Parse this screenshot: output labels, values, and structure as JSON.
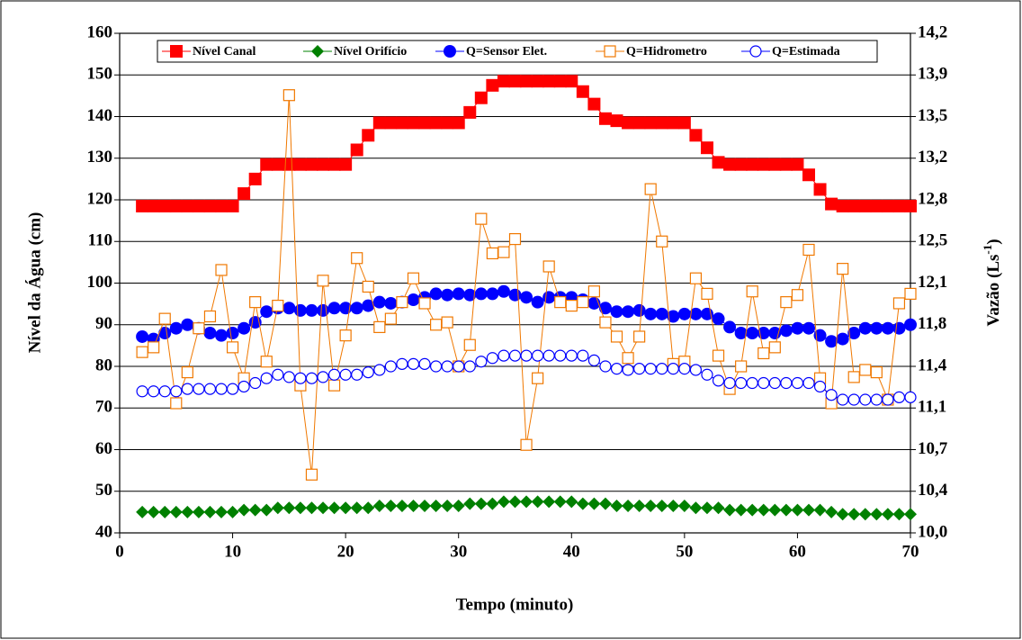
{
  "chart_data": {
    "type": "line",
    "xlabel": "Tempo (minuto)",
    "ylabel": "Nível da Água (cm)",
    "y2label": [
      "Vazão (Ls",
      "-1",
      ")"
    ],
    "xlim": [
      0,
      70
    ],
    "xticks": [
      0,
      10,
      20,
      30,
      40,
      50,
      60,
      70
    ],
    "ylim": [
      40,
      160
    ],
    "yticks": [
      40,
      50,
      60,
      70,
      80,
      90,
      100,
      110,
      120,
      130,
      140,
      150,
      160
    ],
    "y2lim": [
      10.0,
      14.2
    ],
    "y2ticks": [
      {
        "value": 10.0,
        "label": "10,0"
      },
      {
        "value": 10.35,
        "label": "10,4"
      },
      {
        "value": 10.7,
        "label": "10,7"
      },
      {
        "value": 11.05,
        "label": "11,1"
      },
      {
        "value": 11.4,
        "label": "11,4"
      },
      {
        "value": 11.75,
        "label": "11,8"
      },
      {
        "value": 12.1,
        "label": "12,1"
      },
      {
        "value": 12.45,
        "label": "12,5"
      },
      {
        "value": 12.8,
        "label": "12,8"
      },
      {
        "value": 13.15,
        "label": "13,2"
      },
      {
        "value": 13.5,
        "label": "13,5"
      },
      {
        "value": 13.85,
        "label": "13,9"
      },
      {
        "value": 14.2,
        "label": "14,2"
      }
    ],
    "grid": true,
    "legend": "top",
    "x": [
      2,
      3,
      4,
      5,
      6,
      7,
      8,
      9,
      10,
      11,
      12,
      13,
      14,
      15,
      16,
      17,
      18,
      19,
      20,
      21,
      22,
      23,
      24,
      25,
      26,
      27,
      28,
      29,
      30,
      31,
      32,
      33,
      34,
      35,
      36,
      37,
      38,
      39,
      40,
      41,
      42,
      43,
      44,
      45,
      46,
      47,
      48,
      49,
      50,
      51,
      52,
      53,
      54,
      55,
      56,
      57,
      58,
      59,
      60,
      61,
      62,
      63,
      64,
      65,
      66,
      67,
      68,
      69,
      70
    ],
    "series": [
      {
        "name": "Nível Canal",
        "color": "#ff0000",
        "marker": "square",
        "axis": "y",
        "values": [
          118.5,
          118.5,
          118.5,
          118.5,
          118.5,
          118.5,
          118.5,
          118.5,
          118.5,
          121.5,
          125,
          128.5,
          128.5,
          128.5,
          128.5,
          128.5,
          128.5,
          128.5,
          128.5,
          132,
          135.5,
          138.5,
          138.5,
          138.5,
          138.5,
          138.5,
          138.5,
          138.5,
          138.5,
          141,
          144.5,
          147.5,
          148.5,
          148.5,
          148.5,
          148.5,
          148.5,
          148.5,
          148.5,
          146,
          143,
          139.5,
          139,
          138.5,
          138.5,
          138.5,
          138.5,
          138.5,
          138.5,
          135.5,
          132.5,
          129,
          128.5,
          128.5,
          128.5,
          128.5,
          128.5,
          128.5,
          128.5,
          126,
          122.5,
          119,
          118.5,
          118.5,
          118.5,
          118.5,
          118.5,
          118.5,
          118.5
        ]
      },
      {
        "name": "Nível Orifício",
        "color": "#008000",
        "marker": "diamond",
        "axis": "y",
        "values": [
          45,
          45,
          45,
          45,
          45,
          45,
          45,
          45,
          45,
          45.5,
          45.5,
          45.5,
          46,
          46,
          46,
          46,
          46,
          46,
          46,
          46,
          46,
          46.5,
          46.5,
          46.5,
          46.5,
          46.5,
          46.5,
          46.5,
          46.5,
          47,
          47,
          47,
          47.5,
          47.5,
          47.5,
          47.5,
          47.5,
          47.5,
          47.5,
          47,
          47,
          47,
          46.5,
          46.5,
          46.5,
          46.5,
          46.5,
          46.5,
          46.5,
          46,
          46,
          46,
          45.5,
          45.5,
          45.5,
          45.5,
          45.5,
          45.5,
          45.5,
          45.5,
          45.5,
          45,
          44.5,
          44.5,
          44.5,
          44.5,
          44.5,
          44.5,
          44.5
        ]
      },
      {
        "name": "Q=Sensor Elet.",
        "color": "#0000ff",
        "marker": "circle",
        "axis": "y2",
        "values": [
          11.65,
          11.63,
          11.68,
          11.72,
          11.75,
          11.72,
          11.68,
          11.66,
          11.68,
          11.72,
          11.77,
          11.86,
          11.89,
          11.89,
          11.87,
          11.87,
          11.87,
          11.89,
          11.89,
          11.89,
          11.91,
          11.94,
          11.93,
          11.94,
          11.96,
          11.98,
          12.01,
          12.0,
          12.01,
          12.0,
          12.01,
          12.01,
          12.03,
          12.0,
          11.98,
          11.94,
          11.98,
          11.98,
          11.98,
          11.96,
          11.93,
          11.89,
          11.86,
          11.86,
          11.87,
          11.84,
          11.84,
          11.82,
          11.84,
          11.84,
          11.84,
          11.8,
          11.73,
          11.68,
          11.68,
          11.68,
          11.68,
          11.7,
          11.72,
          11.72,
          11.66,
          11.61,
          11.63,
          11.68,
          11.72,
          11.72,
          11.72,
          11.72,
          11.75
        ]
      },
      {
        "name": "Q=Hidrometro",
        "color": "#f07800",
        "marker": "open-square",
        "axis": "y2",
        "values": [
          11.52,
          11.56,
          11.8,
          11.09,
          11.35,
          11.72,
          11.82,
          12.21,
          11.56,
          11.3,
          11.94,
          11.44,
          11.91,
          13.68,
          11.24,
          10.49,
          12.12,
          11.24,
          11.66,
          12.31,
          12.07,
          11.73,
          11.8,
          11.94,
          12.14,
          11.93,
          11.75,
          11.77,
          11.4,
          11.58,
          12.64,
          12.35,
          12.36,
          12.47,
          10.74,
          11.3,
          12.24,
          11.94,
          11.91,
          11.94,
          12.03,
          11.77,
          11.65,
          11.47,
          11.65,
          12.89,
          12.45,
          11.42,
          11.44,
          12.14,
          12.01,
          11.49,
          11.21,
          11.4,
          12.03,
          11.51,
          11.56,
          11.94,
          12.0,
          12.38,
          11.3,
          11.09,
          12.22,
          11.31,
          11.37,
          11.35,
          11.12,
          11.93,
          12.01
        ]
      },
      {
        "name": "Q=Estimada",
        "color": "#0000ff",
        "marker": "open-circle",
        "axis": "y2",
        "values": [
          11.19,
          11.19,
          11.19,
          11.19,
          11.21,
          11.21,
          11.21,
          11.21,
          11.21,
          11.23,
          11.26,
          11.3,
          11.33,
          11.31,
          11.3,
          11.3,
          11.31,
          11.33,
          11.33,
          11.33,
          11.35,
          11.37,
          11.4,
          11.42,
          11.42,
          11.42,
          11.4,
          11.4,
          11.4,
          11.4,
          11.44,
          11.47,
          11.49,
          11.49,
          11.49,
          11.49,
          11.49,
          11.49,
          11.49,
          11.49,
          11.45,
          11.4,
          11.38,
          11.37,
          11.38,
          11.38,
          11.38,
          11.38,
          11.38,
          11.37,
          11.33,
          11.28,
          11.26,
          11.26,
          11.26,
          11.26,
          11.26,
          11.26,
          11.26,
          11.26,
          11.23,
          11.16,
          11.12,
          11.12,
          11.12,
          11.12,
          11.12,
          11.14,
          11.14
        ]
      }
    ]
  }
}
